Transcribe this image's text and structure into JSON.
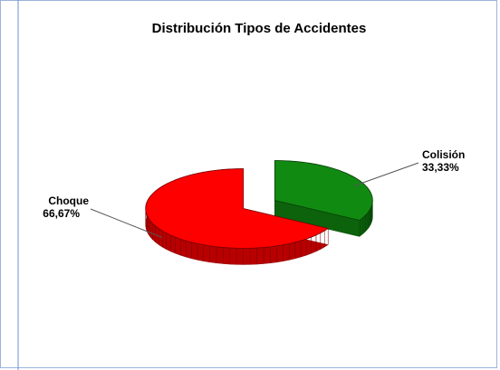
{
  "chart_data": {
    "type": "pie3d",
    "title": "Distribución Tipos de Accidentes",
    "categories": [
      "Colisión",
      "Choque"
    ],
    "values": [
      33.33,
      66.67
    ],
    "value_labels": [
      "33,33%",
      "66,67%"
    ],
    "colors": [
      "#118a11",
      "#ff0000"
    ]
  }
}
